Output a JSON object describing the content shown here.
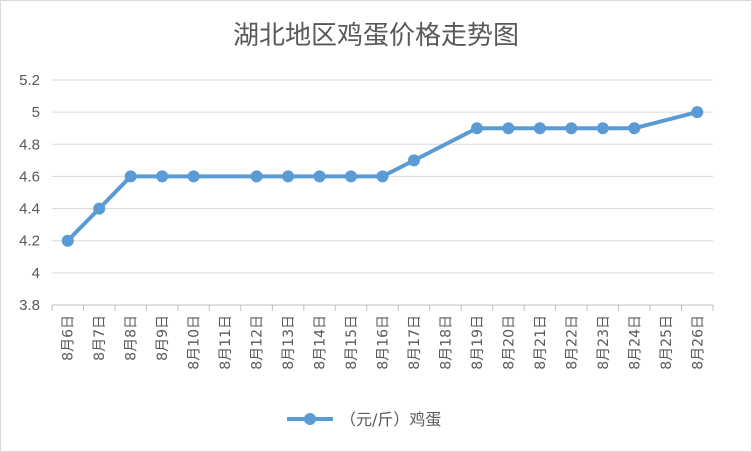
{
  "chart_data": {
    "type": "line",
    "title": "湖北地区鸡蛋价格走势图",
    "categories": [
      "8月6日",
      "8月7日",
      "8月8日",
      "8月9日",
      "8月10日",
      "8月11日",
      "8月12日",
      "8月13日",
      "8月14日",
      "8月15日",
      "8月16日",
      "8月17日",
      "8月18日",
      "8月19日",
      "8月20日",
      "8月21日",
      "8月22日",
      "8月23日",
      "8月24日",
      "8月25日",
      "8月26日"
    ],
    "series": [
      {
        "name": "（元/斤）鸡蛋",
        "values": [
          4.2,
          4.4,
          4.6,
          4.6,
          4.6,
          null,
          4.6,
          4.6,
          4.6,
          4.6,
          4.6,
          4.7,
          null,
          4.9,
          4.9,
          4.9,
          4.9,
          4.9,
          4.9,
          null,
          5.0
        ],
        "color": "#5b9bd5"
      }
    ],
    "ylim": [
      3.8,
      5.2
    ],
    "yticks": [
      "3.8",
      "4",
      "4.2",
      "4.4",
      "4.6",
      "4.8",
      "5",
      "5.2"
    ],
    "grid": true,
    "legend": "bottom",
    "connect_gaps": true
  }
}
